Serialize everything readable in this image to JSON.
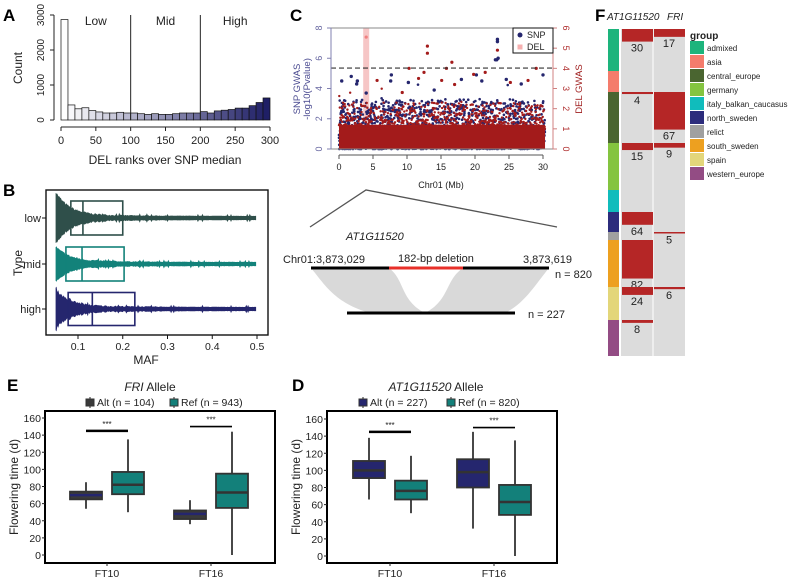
{
  "panel_labels": {
    "A": "A",
    "B": "B",
    "C": "C",
    "D": "D",
    "E": "E",
    "F": "F"
  },
  "diagram": {
    "gene": "AT1G11520",
    "left_coord": "Chr01:3,873,029",
    "right_coord": "3,873,619",
    "deletion_label": "182-bp deletion",
    "ref_n": "n = 820",
    "alt_n": "n = 227",
    "colors": {
      "ref_line": "#000000",
      "deletion": "#e8302a",
      "ribbon": "#d9d9d9"
    }
  },
  "chart_data": [
    {
      "id": "A",
      "type": "bar",
      "xlabel": "DEL ranks over SNP median",
      "ylabel": "Count",
      "xlim": [
        0,
        300
      ],
      "ylim": [
        0,
        3000
      ],
      "xticks": [
        0,
        50,
        100,
        150,
        200,
        250,
        300
      ],
      "yticks": [
        0,
        1000,
        2000,
        3000
      ],
      "bin_width": 10,
      "bin_starts": [
        0,
        10,
        20,
        30,
        40,
        50,
        60,
        70,
        80,
        90,
        100,
        110,
        120,
        130,
        140,
        150,
        160,
        170,
        180,
        190,
        200,
        210,
        220,
        230,
        240,
        250,
        260,
        270,
        280,
        290
      ],
      "values": [
        2870,
        430,
        320,
        350,
        270,
        230,
        200,
        200,
        220,
        200,
        200,
        180,
        160,
        180,
        160,
        160,
        180,
        200,
        200,
        200,
        240,
        200,
        260,
        280,
        300,
        340,
        340,
        410,
        500,
        630
      ],
      "regions": [
        {
          "label": "Low",
          "from": 0,
          "to": 100
        },
        {
          "label": "Mid",
          "from": 100,
          "to": 200
        },
        {
          "label": "High",
          "from": 200,
          "to": 300
        }
      ],
      "colors": {
        "low": "#ffffff",
        "high": "#1f1f66"
      },
      "grid": false
    },
    {
      "id": "B",
      "type": "violin-box",
      "xlabel": "MAF",
      "ylabel": "Type",
      "xlim": [
        0.03,
        0.52
      ],
      "xticks": [
        0.1,
        0.2,
        0.3,
        0.4,
        0.5
      ],
      "categories": [
        "low",
        "mid",
        "high"
      ],
      "boxes": [
        {
          "name": "low",
          "q1": 0.084,
          "median": 0.111,
          "q3": 0.2,
          "min": 0.05,
          "max": 0.5,
          "color": "#2f4f4a"
        },
        {
          "name": "mid",
          "q1": 0.073,
          "median": 0.109,
          "q3": 0.203,
          "min": 0.05,
          "max": 0.5,
          "color": "#13827a"
        },
        {
          "name": "high",
          "q1": 0.078,
          "median": 0.132,
          "q3": 0.227,
          "min": 0.05,
          "max": 0.5,
          "color": "#25266e"
        }
      ],
      "grid": false
    },
    {
      "id": "C",
      "type": "scatter",
      "xlabel": "Chr01 (Mb)",
      "ylabel_left": [
        "SNP GWAS",
        "-log10(Pvalue)"
      ],
      "ylabel_right": "DEL GWAS",
      "xlim": [
        0,
        30.5
      ],
      "ylim": [
        0,
        8
      ],
      "ylim_right": [
        0,
        6
      ],
      "xticks": [
        0,
        5,
        10,
        15,
        20,
        25,
        30
      ],
      "yticks": [
        0,
        2,
        4,
        6,
        8
      ],
      "yticks_right": [
        0,
        1,
        2,
        3,
        4,
        5,
        6
      ],
      "threshold": 5.35,
      "highlight_x": 4.0,
      "legend": {
        "position": "top-right",
        "entries": [
          "SNP",
          "DEL"
        ]
      },
      "series": [
        {
          "name": "SNP",
          "color": "#25266e",
          "axis": "left",
          "points": [
            [
              23.3,
              7.25
            ],
            [
              23.3,
              7.1
            ],
            [
              23.0,
              5.9
            ],
            [
              23.2,
              5.9
            ],
            [
              23.4,
              6.0
            ],
            [
              1.8,
              4.8
            ],
            [
              2.7,
              4.5
            ],
            [
              2.6,
              4.3
            ],
            [
              0.4,
              4.5
            ],
            [
              7.7,
              4.9
            ],
            [
              7.6,
              4.5
            ],
            [
              10.2,
              4.4
            ],
            [
              14.0,
              3.9
            ],
            [
              18.0,
              4.6
            ],
            [
              20.2,
              4.9
            ],
            [
              21.0,
              4.5
            ],
            [
              24.6,
              4.6
            ],
            [
              26.8,
              4.3
            ],
            [
              30.0,
              4.9
            ],
            [
              4.0,
              3.7
            ]
          ]
        },
        {
          "name": "DEL",
          "color": "#a31b1b",
          "axis": "right",
          "points": [
            [
              4.0,
              5.55
            ],
            [
              13.0,
              5.1
            ],
            [
              13.0,
              4.75
            ],
            [
              16.6,
              4.3
            ],
            [
              15.8,
              4.0
            ],
            [
              10.3,
              4.0
            ],
            [
              23.3,
              4.9
            ],
            [
              29.0,
              4.0
            ],
            [
              5.6,
              3.4
            ],
            [
              11.7,
              3.5
            ],
            [
              12.5,
              3.8
            ],
            [
              27.8,
              3.4
            ],
            [
              19.8,
              3.7
            ],
            [
              21.5,
              3.8
            ],
            [
              15.1,
              3.4
            ],
            [
              9.3,
              2.8
            ],
            [
              17.0,
              3.2
            ],
            [
              25.2,
              3.3
            ]
          ]
        }
      ],
      "highlight_color": "#f6c6c6",
      "grid": false
    },
    {
      "id": "E",
      "type": "box",
      "title_italic": "FRI",
      "title_rest": " Allele",
      "ylabel": "Flowering time (d)",
      "ylim": [
        0,
        160
      ],
      "yticks": [
        0,
        20,
        40,
        60,
        80,
        100,
        120,
        140,
        160
      ],
      "categories": [
        "FT10",
        "FT16"
      ],
      "series": [
        {
          "name": "Alt (n = 104)",
          "color": "#3a3a3a",
          "median_color": "#25266e",
          "stats": [
            {
              "min": 54,
              "q1": 65,
              "median": 70,
              "q3": 74,
              "max": 85
            },
            {
              "min": 36,
              "q1": 42,
              "median": 48,
              "q3": 52,
              "max": 64
            }
          ]
        },
        {
          "name": "Ref (n = 943)",
          "color": "#13807a",
          "median_color": "#333333",
          "stats": [
            {
              "min": 50,
              "q1": 71,
              "median": 82,
              "q3": 97,
              "max": 135
            },
            {
              "min": 0,
              "q1": 55,
              "median": 73,
              "q3": 95,
              "max": 144
            }
          ]
        }
      ],
      "significance": [
        {
          "category": "FT10",
          "y": 145,
          "label": "***"
        },
        {
          "category": "FT16",
          "y": 150,
          "label": "***"
        }
      ],
      "legend": {
        "position": "top"
      },
      "grid": false
    },
    {
      "id": "D",
      "type": "box",
      "title_italic": "AT1G11520",
      "title_rest": " Allele",
      "ylabel": "Flowering time (d)",
      "ylim": [
        0,
        160
      ],
      "yticks": [
        0,
        20,
        40,
        60,
        80,
        100,
        120,
        140,
        160
      ],
      "categories": [
        "FT10",
        "FT16"
      ],
      "series": [
        {
          "name": "Alt (n = 227)",
          "color": "#25266e",
          "median_color": "#333333",
          "stats": [
            {
              "min": 66,
              "q1": 91,
              "median": 100,
              "q3": 111,
              "max": 138
            },
            {
              "min": 32,
              "q1": 80,
              "median": 98,
              "q3": 113,
              "max": 145
            }
          ]
        },
        {
          "name": "Ref (n = 820)",
          "color": "#13807a",
          "median_color": "#333333",
          "stats": [
            {
              "min": 50,
              "q1": 66,
              "median": 76,
              "q3": 88,
              "max": 117
            },
            {
              "min": 0,
              "q1": 48,
              "median": 63,
              "q3": 83,
              "max": 135
            }
          ]
        }
      ],
      "significance": [
        {
          "category": "FT10",
          "y": 145,
          "label": "***"
        },
        {
          "category": "FT16",
          "y": 150,
          "label": "***"
        }
      ],
      "legend": {
        "position": "top"
      },
      "grid": false
    },
    {
      "id": "F",
      "type": "heatmap",
      "columns": [
        "AT1G11520",
        "FRI"
      ],
      "legend_title": "group",
      "groups": [
        {
          "name": "admixed",
          "color": "#1db47c"
        },
        {
          "name": "asia",
          "color": "#f47c6c"
        },
        {
          "name": "central_europe",
          "color": "#4a6530"
        },
        {
          "name": "germany",
          "color": "#84c440"
        },
        {
          "name": "italy_balkan_caucasus",
          "color": "#10bcbc"
        },
        {
          "name": "north_sweden",
          "color": "#2c2c7c"
        },
        {
          "name": "relict",
          "color": "#a0a0a0"
        },
        {
          "name": "south_sweden",
          "color": "#eda020"
        },
        {
          "name": "spain",
          "color": "#e3d67a"
        },
        {
          "name": "western_europe",
          "color": "#934c84"
        }
      ],
      "counts": {
        "AT1G11520": [
          30,
          0,
          4,
          15,
          0,
          64,
          0,
          82,
          24,
          8
        ],
        "FRI": [
          17,
          0,
          67,
          9,
          0,
          0,
          5,
          0,
          6,
          0
        ]
      },
      "mark_color": "#b52626",
      "background_color": "#dcdcdc"
    }
  ]
}
